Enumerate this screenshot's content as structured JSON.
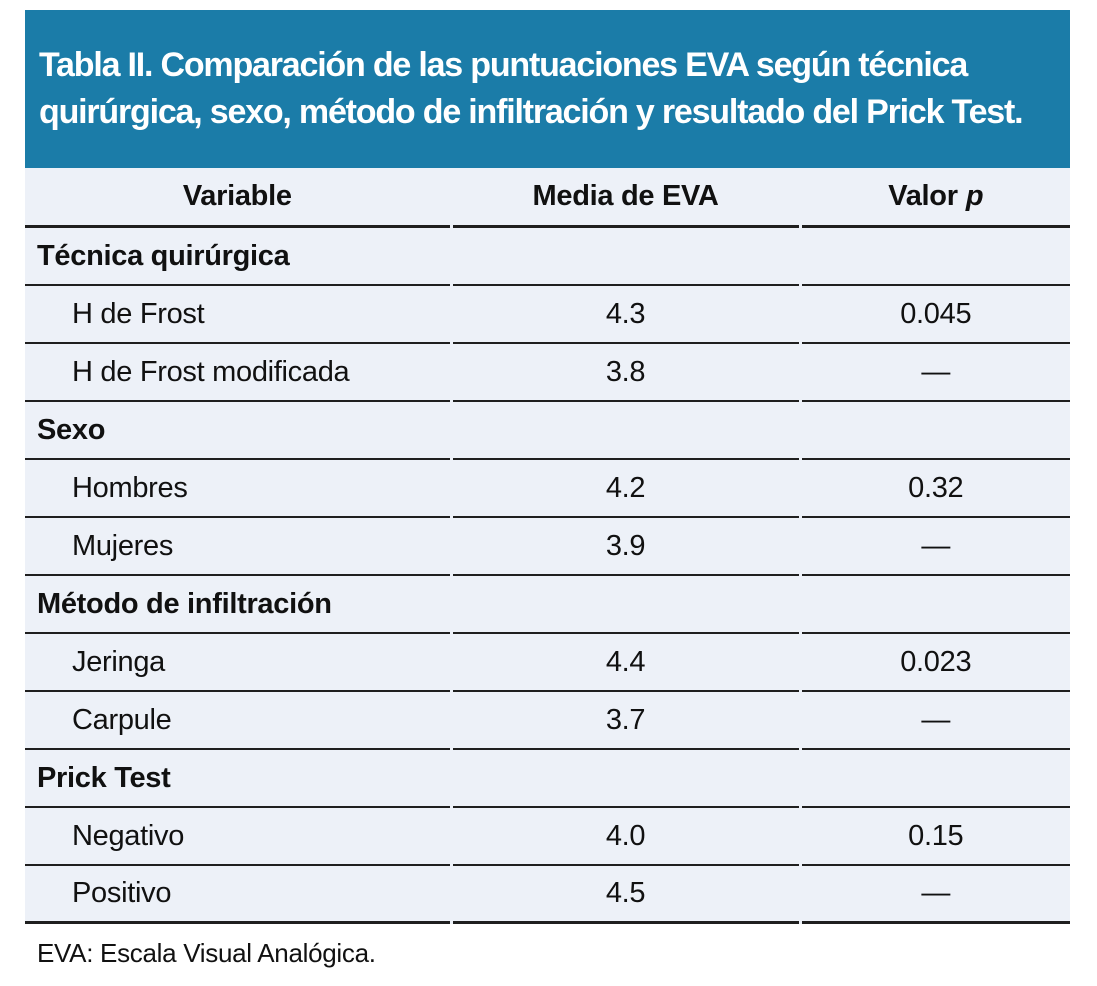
{
  "table": {
    "title": "Tabla II. Comparación de las puntuaciones EVA según técnica quirúrgica, sexo, método de infiltración y resultado del Prick Test.",
    "columns": {
      "variable": "Variable",
      "media": "Media de EVA",
      "valor_text": "Valor",
      "valor_italic": "p"
    },
    "sections": [
      {
        "label": "Técnica quirúrgica",
        "rows": [
          {
            "variable": "H de Frost",
            "media": "4.3",
            "p": "0.045"
          },
          {
            "variable": "H de Frost modificada",
            "media": "3.8",
            "p": "—"
          }
        ]
      },
      {
        "label": "Sexo",
        "rows": [
          {
            "variable": "Hombres",
            "media": "4.2",
            "p": "0.32"
          },
          {
            "variable": "Mujeres",
            "media": "3.9",
            "p": "—"
          }
        ]
      },
      {
        "label": "Método de infiltración",
        "rows": [
          {
            "variable": "Jeringa",
            "media": "4.4",
            "p": "0.023"
          },
          {
            "variable": "Carpule",
            "media": "3.7",
            "p": "—"
          }
        ]
      },
      {
        "label": "Prick Test",
        "rows": [
          {
            "variable": "Negativo",
            "media": "4.0",
            "p": "0.15"
          },
          {
            "variable": "Positivo",
            "media": "4.5",
            "p": "—"
          }
        ]
      }
    ],
    "footnote": "EVA: Escala Visual Analógica.",
    "colors": {
      "title_band_bg": "#1b7ca8",
      "title_text": "#ffffff",
      "row_bg": "#edf1f8",
      "rule": "#1f1f1f",
      "body_text": "#111111",
      "footnote_bg": "#ffffff"
    }
  }
}
